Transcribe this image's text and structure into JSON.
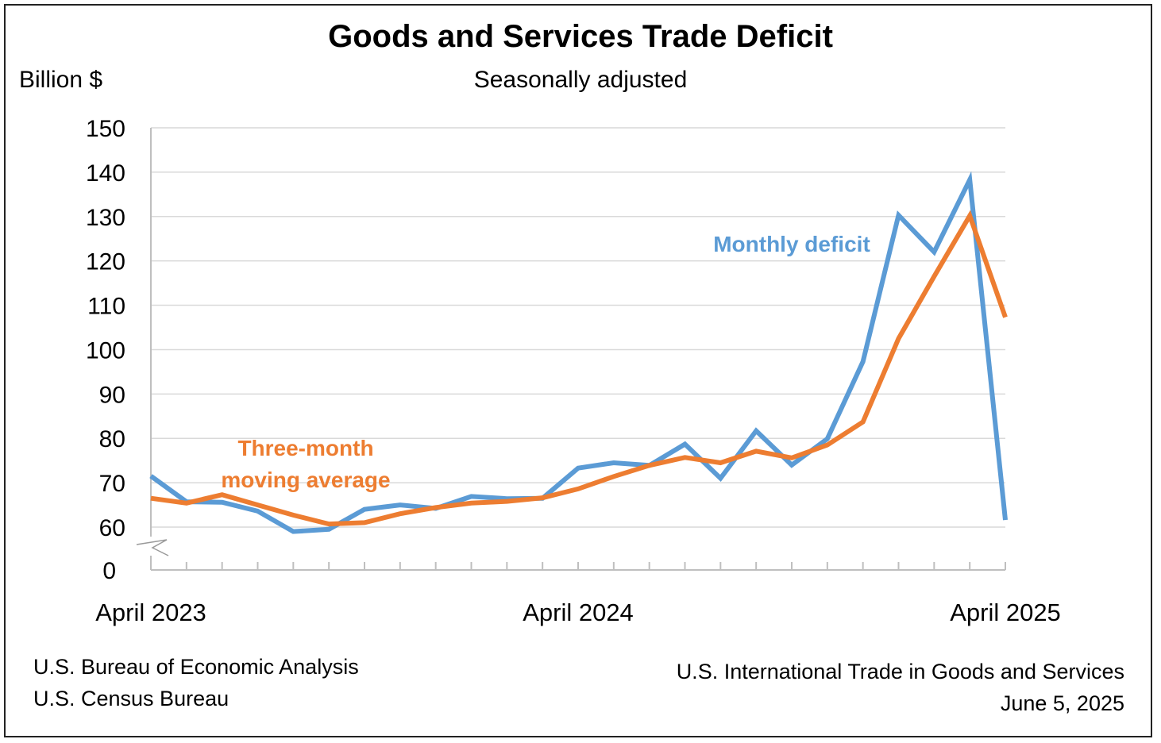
{
  "chart_data": {
    "type": "line",
    "title": "Goods and Services Trade Deficit",
    "subtitle": "Seasonally adjusted",
    "ylabel": "Billion $",
    "ylim": [
      60,
      150
    ],
    "axis_break_zero_label": "0",
    "y_ticks": [
      "150",
      "140",
      "130",
      "120",
      "110",
      "100",
      "90",
      "80",
      "70",
      "60"
    ],
    "x_tick_labels": [
      "April 2023",
      "April 2024",
      "April 2025"
    ],
    "x": [
      "Apr 2023",
      "May 2023",
      "Jun 2023",
      "Jul 2023",
      "Aug 2023",
      "Sep 2023",
      "Oct 2023",
      "Nov 2023",
      "Dec 2023",
      "Jan 2024",
      "Feb 2024",
      "Mar 2024",
      "Apr 2024",
      "May 2024",
      "Jun 2024",
      "Jul 2024",
      "Aug 2024",
      "Sep 2024",
      "Oct 2024",
      "Nov 2024",
      "Dec 2024",
      "Jan 2025",
      "Feb 2025",
      "Mar 2025",
      "Apr 2025"
    ],
    "grid": true,
    "series": [
      {
        "name": "Monthly deficit",
        "color": "#5b9bd5",
        "values": [
          71.5,
          65.7,
          65.6,
          63.6,
          59.0,
          59.5,
          64.0,
          65.0,
          64.2,
          66.9,
          66.4,
          66.5,
          73.3,
          74.5,
          73.9,
          78.7,
          71.0,
          81.7,
          74.0,
          79.9,
          97.3,
          130.3,
          122.0,
          138.3,
          61.6
        ]
      },
      {
        "name": "Three-month moving average",
        "label_lines": [
          "Three-month",
          "moving average"
        ],
        "color": "#ed7d31",
        "values": [
          66.5,
          65.4,
          67.3,
          65.0,
          62.7,
          60.7,
          61.0,
          63.0,
          64.4,
          65.4,
          65.8,
          66.6,
          68.6,
          71.4,
          73.9,
          75.7,
          74.5,
          77.1,
          75.6,
          78.5,
          83.7,
          102.5,
          116.5,
          130.2,
          107.3
        ]
      }
    ]
  },
  "source_left": [
    "U.S. Bureau of Economic Analysis",
    "U.S. Census Bureau"
  ],
  "source_right": [
    "U.S. International Trade in Goods and Services",
    "June 5, 2025"
  ]
}
